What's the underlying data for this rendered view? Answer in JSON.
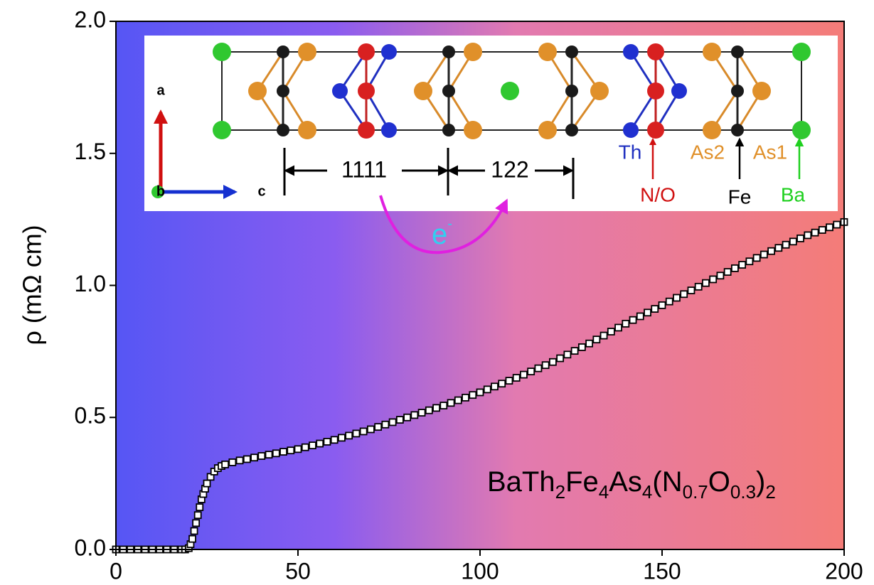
{
  "chart_data": {
    "type": "scatter",
    "x": [
      0,
      2,
      4,
      6,
      8,
      10,
      12,
      14,
      16,
      18,
      19,
      20,
      20.5,
      21,
      21.5,
      22,
      22.5,
      23,
      23.5,
      24,
      24.5,
      25,
      26,
      27,
      28,
      29,
      30,
      32,
      34,
      36,
      38,
      40,
      42,
      44,
      46,
      48,
      50,
      52,
      54,
      56,
      58,
      60,
      62,
      64,
      66,
      68,
      70,
      72,
      74,
      76,
      78,
      80,
      82,
      84,
      86,
      88,
      90,
      92,
      94,
      96,
      98,
      100,
      102,
      104,
      106,
      108,
      110,
      112,
      114,
      116,
      118,
      120,
      122,
      124,
      126,
      128,
      130,
      132,
      134,
      136,
      138,
      140,
      142,
      144,
      146,
      148,
      150,
      152,
      154,
      156,
      158,
      160,
      162,
      164,
      166,
      168,
      170,
      172,
      174,
      176,
      178,
      180,
      182,
      184,
      186,
      188,
      190,
      192,
      194,
      196,
      198,
      200
    ],
    "values": [
      0,
      0,
      0,
      0,
      0,
      0,
      0,
      0,
      0,
      0,
      0,
      0.005,
      0.02,
      0.04,
      0.07,
      0.1,
      0.13,
      0.16,
      0.19,
      0.21,
      0.23,
      0.25,
      0.275,
      0.295,
      0.308,
      0.316,
      0.322,
      0.33,
      0.337,
      0.342,
      0.348,
      0.354,
      0.359,
      0.364,
      0.37,
      0.375,
      0.38,
      0.387,
      0.394,
      0.401,
      0.408,
      0.415,
      0.423,
      0.431,
      0.439,
      0.447,
      0.455,
      0.464,
      0.473,
      0.482,
      0.491,
      0.5,
      0.509,
      0.518,
      0.527,
      0.536,
      0.545,
      0.555,
      0.565,
      0.575,
      0.585,
      0.595,
      0.606,
      0.617,
      0.628,
      0.639,
      0.65,
      0.662,
      0.674,
      0.686,
      0.698,
      0.71,
      0.724,
      0.738,
      0.752,
      0.766,
      0.78,
      0.795,
      0.81,
      0.825,
      0.84,
      0.855,
      0.869,
      0.883,
      0.897,
      0.911,
      0.925,
      0.939,
      0.953,
      0.967,
      0.981,
      0.995,
      1.009,
      1.023,
      1.037,
      1.051,
      1.065,
      1.078,
      1.091,
      1.104,
      1.117,
      1.13,
      1.142,
      1.154,
      1.166,
      1.178,
      1.19,
      1.2,
      1.21,
      1.22,
      1.23,
      1.24
    ],
    "marker": "square",
    "color": "#000000",
    "xlim": [
      0,
      200
    ],
    "ylim": [
      0,
      2
    ],
    "xticks": [
      0,
      50,
      100,
      150,
      200
    ],
    "yticks": [
      {
        "value": 0,
        "label": "0.0"
      },
      0.5,
      {
        "value": 1,
        "label": "1.0"
      },
      1.5,
      {
        "value": 2,
        "label": "2.0"
      }
    ],
    "grid": false,
    "ylabel": "ρ (mΩ cm)",
    "annotation": [
      {
        "text": "BaTh"
      },
      {
        "sub": "2"
      },
      {
        "text": "Fe"
      },
      {
        "sub": "4"
      },
      {
        "text": "As"
      },
      {
        "sub": "4"
      },
      {
        "text": "(N"
      },
      {
        "sub": "0.7"
      },
      {
        "text": "O"
      },
      {
        "sub": "0.3"
      },
      {
        "text": ")"
      },
      {
        "sub": "2"
      }
    ]
  },
  "inset": {
    "axis_a": "a",
    "axis_b": "b",
    "axis_c": "c",
    "block_1111": "1111",
    "block_122": "122",
    "th": "Th",
    "no": "N/O",
    "as2": "As2",
    "as1": "As1",
    "fe": "Fe",
    "ba": "Ba",
    "electron": {
      "text": "e",
      "sup": "-"
    }
  }
}
